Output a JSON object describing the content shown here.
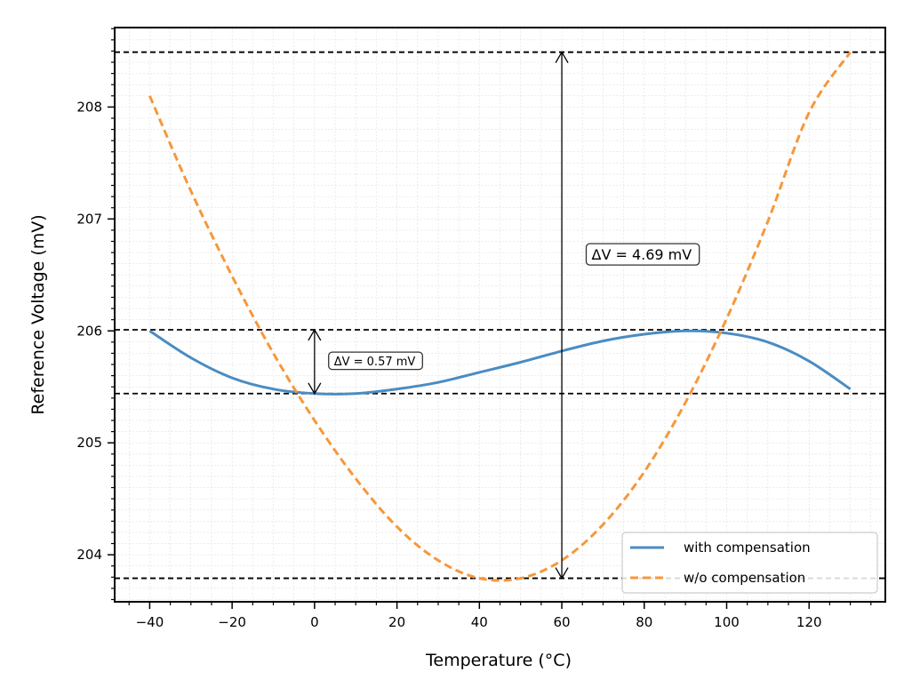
{
  "chart_data": {
    "type": "line",
    "title": "",
    "xlabel": "Temperature (°C)",
    "ylabel": "Reference Voltage (mV)",
    "xlim": [
      -48.5,
      138.5
    ],
    "ylim": [
      203.58,
      208.71
    ],
    "xticks": [
      -40,
      -20,
      0,
      20,
      40,
      60,
      80,
      100,
      120
    ],
    "xtick_labels": [
      "−40",
      "−20",
      "0",
      "20",
      "40",
      "60",
      "80",
      "100",
      "120"
    ],
    "yticks": [
      204,
      205,
      206,
      207,
      208
    ],
    "ytick_labels": [
      "204",
      "205",
      "206",
      "207",
      "208"
    ],
    "grid": true,
    "legend_position": "lower-right",
    "series": [
      {
        "name": "with compensation",
        "color": "#4a8cc2",
        "style": "solid",
        "x": [
          -40,
          -30,
          -20,
          -10,
          0,
          10,
          20,
          30,
          40,
          50,
          60,
          70,
          80,
          90,
          100,
          110,
          120,
          130
        ],
        "y": [
          206.0,
          205.76,
          205.58,
          205.48,
          205.44,
          205.44,
          205.48,
          205.54,
          205.63,
          205.72,
          205.82,
          205.91,
          205.97,
          206.0,
          205.98,
          205.9,
          205.73,
          205.48
        ]
      },
      {
        "name": "w/o compensation",
        "color": "#f7973a",
        "style": "dashed",
        "x": [
          -40,
          -30,
          -20,
          -10,
          0,
          10,
          20,
          30,
          40,
          50,
          60,
          70,
          80,
          90,
          100,
          110,
          120,
          130
        ],
        "y": [
          208.1,
          207.25,
          206.49,
          205.8,
          205.2,
          204.68,
          204.25,
          203.95,
          203.79,
          203.79,
          203.95,
          204.27,
          204.74,
          205.36,
          206.11,
          206.98,
          207.95,
          208.49
        ]
      }
    ],
    "reference_lines": [
      208.49,
      206.01,
      205.44,
      203.79
    ],
    "annotations": [
      {
        "label": "ΔV = 4.69 mV",
        "x": 60,
        "y_from": 203.79,
        "y_to": 208.49,
        "label_x": 67,
        "label_y": 206.68
      },
      {
        "label": "ΔV = 0.57 mV",
        "x": 0,
        "y_from": 205.44,
        "y_to": 206.01,
        "label_x": 4.5,
        "label_y": 205.73
      }
    ]
  }
}
